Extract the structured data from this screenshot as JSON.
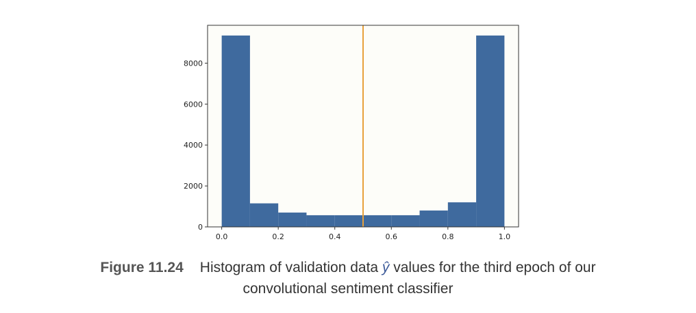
{
  "figure": {
    "label": "Figure 11.24",
    "caption_before": "Histogram of validation data ",
    "caption_symbol": "ŷ",
    "caption_after_line1": " values for the third epoch of our",
    "caption_line2": "convolutional sentiment classifier"
  },
  "chart_data": {
    "type": "bar",
    "title": "",
    "xlabel": "",
    "ylabel": "",
    "bin_edges": [
      0.0,
      0.1,
      0.2,
      0.3,
      0.4,
      0.5,
      0.6,
      0.7,
      0.8,
      0.9,
      1.0
    ],
    "values": [
      9350,
      1150,
      700,
      570,
      570,
      570,
      570,
      800,
      1200,
      9350
    ],
    "xlim": [
      -0.05,
      1.05
    ],
    "ylim": [
      0,
      9850
    ],
    "xticks": [
      0.0,
      0.2,
      0.4,
      0.6,
      0.8,
      1.0
    ],
    "xtick_labels": [
      "0.0",
      "0.2",
      "0.4",
      "0.6",
      "0.8",
      "1.0"
    ],
    "yticks": [
      0,
      2000,
      4000,
      6000,
      8000
    ],
    "ytick_labels": [
      "0",
      "2000",
      "4000",
      "6000",
      "8000"
    ],
    "threshold_line": {
      "x": 0.5,
      "color": "#e8a13c"
    },
    "bar_color": "#3f6a9e",
    "plot_background": "#fdfdf9",
    "grid": false
  }
}
